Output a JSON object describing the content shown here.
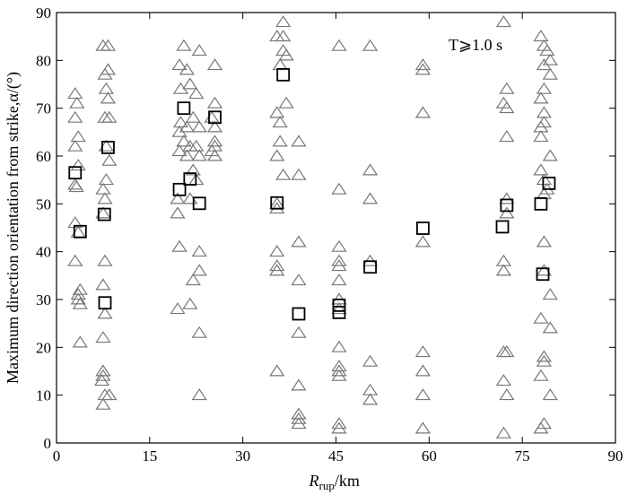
{
  "chart_data": {
    "type": "scatter",
    "xlim": [
      0,
      90
    ],
    "ylim": [
      0,
      90
    ],
    "x_ticks": [
      0,
      15,
      30,
      45,
      60,
      75,
      90
    ],
    "y_ticks": [
      0,
      10,
      20,
      30,
      40,
      50,
      60,
      70,
      80,
      90
    ],
    "xlabel_main": "R",
    "xlabel_sub": "rup",
    "xlabel_unit": "/km",
    "ylabel": "Maximum direction orientation from strike,α/(°)",
    "annotation": "T⩾1.0 s",
    "grid": false,
    "colors": {
      "triangle": "#777777",
      "square": "#000000"
    },
    "series": [
      {
        "marker": "triangle",
        "points": [
          [
            3.0,
            73
          ],
          [
            3.3,
            71
          ],
          [
            3.0,
            68
          ],
          [
            3.5,
            64
          ],
          [
            3.0,
            62
          ],
          [
            3.5,
            58
          ],
          [
            3.0,
            54
          ],
          [
            3.2,
            53.5
          ],
          [
            3.0,
            46
          ],
          [
            3.5,
            44
          ],
          [
            3.0,
            38
          ],
          [
            3.8,
            32
          ],
          [
            3.5,
            31
          ],
          [
            3.5,
            30
          ],
          [
            3.8,
            29
          ],
          [
            3.8,
            21
          ],
          [
            7.5,
            83
          ],
          [
            8.3,
            83
          ],
          [
            7.8,
            77
          ],
          [
            8.3,
            78
          ],
          [
            8.0,
            74
          ],
          [
            8.3,
            72
          ],
          [
            7.8,
            68
          ],
          [
            8.5,
            68
          ],
          [
            8.0,
            62
          ],
          [
            8.5,
            59
          ],
          [
            8.0,
            55
          ],
          [
            7.5,
            53
          ],
          [
            7.8,
            51
          ],
          [
            7.5,
            48
          ],
          [
            7.8,
            38
          ],
          [
            7.5,
            33
          ],
          [
            7.8,
            27
          ],
          [
            7.5,
            22
          ],
          [
            7.5,
            15
          ],
          [
            7.5,
            14
          ],
          [
            7.3,
            13
          ],
          [
            8.5,
            10
          ],
          [
            7.8,
            10
          ],
          [
            7.5,
            8
          ],
          [
            20.5,
            83
          ],
          [
            19.8,
            79
          ],
          [
            21.0,
            78
          ],
          [
            20.0,
            74
          ],
          [
            21.5,
            75
          ],
          [
            22.5,
            73
          ],
          [
            20.0,
            67
          ],
          [
            21.0,
            66
          ],
          [
            22.0,
            68
          ],
          [
            23.0,
            66
          ],
          [
            19.8,
            65
          ],
          [
            20.5,
            63
          ],
          [
            21.5,
            62
          ],
          [
            22.5,
            62
          ],
          [
            23.0,
            60
          ],
          [
            19.8,
            61
          ],
          [
            21.0,
            60
          ],
          [
            22.0,
            57
          ],
          [
            22.5,
            55
          ],
          [
            19.5,
            51
          ],
          [
            21.5,
            51
          ],
          [
            19.5,
            48
          ],
          [
            19.8,
            41
          ],
          [
            23.0,
            40
          ],
          [
            23.0,
            36
          ],
          [
            22.0,
            34
          ],
          [
            21.5,
            29
          ],
          [
            19.5,
            28
          ],
          [
            23.0,
            23
          ],
          [
            23.0,
            10
          ],
          [
            23.0,
            82
          ],
          [
            25.5,
            79
          ],
          [
            25.5,
            71
          ],
          [
            25.0,
            68
          ],
          [
            25.5,
            66
          ],
          [
            25.5,
            63
          ],
          [
            25.5,
            62
          ],
          [
            25.0,
            61
          ],
          [
            25.5,
            60
          ],
          [
            36.5,
            88
          ],
          [
            35.5,
            85
          ],
          [
            36.5,
            85
          ],
          [
            36.5,
            82
          ],
          [
            37.0,
            81
          ],
          [
            36.0,
            79
          ],
          [
            37.0,
            71
          ],
          [
            35.5,
            69
          ],
          [
            36.0,
            67
          ],
          [
            36.0,
            63
          ],
          [
            35.5,
            60
          ],
          [
            36.5,
            56
          ],
          [
            35.5,
            50
          ],
          [
            35.5,
            49
          ],
          [
            35.5,
            40
          ],
          [
            35.5,
            37
          ],
          [
            35.5,
            36
          ],
          [
            35.5,
            15
          ],
          [
            39.0,
            63
          ],
          [
            39.0,
            56
          ],
          [
            39.0,
            42
          ],
          [
            39.0,
            34
          ],
          [
            39.0,
            23
          ],
          [
            39.0,
            12
          ],
          [
            39.0,
            6
          ],
          [
            39.0,
            5
          ],
          [
            39.0,
            4
          ],
          [
            45.5,
            83
          ],
          [
            45.5,
            53
          ],
          [
            45.5,
            41
          ],
          [
            45.5,
            38
          ],
          [
            45.5,
            37
          ],
          [
            45.5,
            34
          ],
          [
            45.5,
            30
          ],
          [
            45.5,
            28
          ],
          [
            45.5,
            20
          ],
          [
            45.5,
            16
          ],
          [
            45.5,
            15
          ],
          [
            45.5,
            14
          ],
          [
            45.5,
            4
          ],
          [
            45.5,
            3
          ],
          [
            50.5,
            83
          ],
          [
            50.5,
            57
          ],
          [
            50.5,
            51
          ],
          [
            50.5,
            38
          ],
          [
            50.5,
            17
          ],
          [
            50.5,
            11
          ],
          [
            50.5,
            9
          ],
          [
            59.0,
            79
          ],
          [
            59.0,
            78
          ],
          [
            59.0,
            69
          ],
          [
            59.0,
            42
          ],
          [
            59.0,
            19
          ],
          [
            59.0,
            15
          ],
          [
            59.0,
            10
          ],
          [
            59.0,
            3
          ],
          [
            72.0,
            88
          ],
          [
            72.0,
            71
          ],
          [
            72.5,
            74
          ],
          [
            72.5,
            70
          ],
          [
            72.5,
            64
          ],
          [
            72.0,
            38
          ],
          [
            72.0,
            36
          ],
          [
            72.0,
            19
          ],
          [
            72.5,
            19
          ],
          [
            72.0,
            13
          ],
          [
            72.5,
            10
          ],
          [
            72.0,
            2
          ],
          [
            72.5,
            51
          ],
          [
            72.5,
            48
          ],
          [
            78.0,
            85
          ],
          [
            78.5,
            83
          ],
          [
            79.0,
            82
          ],
          [
            79.5,
            80
          ],
          [
            78.5,
            79
          ],
          [
            79.5,
            77
          ],
          [
            78.5,
            74
          ],
          [
            78.0,
            72
          ],
          [
            78.5,
            69
          ],
          [
            78.5,
            67
          ],
          [
            78.0,
            66
          ],
          [
            78.0,
            64
          ],
          [
            79.5,
            60
          ],
          [
            78.0,
            57
          ],
          [
            78.5,
            55
          ],
          [
            79.0,
            53
          ],
          [
            78.5,
            52
          ],
          [
            78.5,
            42
          ],
          [
            78.5,
            36
          ],
          [
            79.5,
            31
          ],
          [
            78.0,
            26
          ],
          [
            79.5,
            24
          ],
          [
            78.5,
            18
          ],
          [
            78.5,
            17
          ],
          [
            78.0,
            14
          ],
          [
            79.5,
            10
          ],
          [
            78.5,
            4
          ],
          [
            78.0,
            3
          ]
        ]
      },
      {
        "marker": "square",
        "points": [
          [
            3.0,
            56.5
          ],
          [
            3.8,
            44.2
          ],
          [
            7.7,
            47.8
          ],
          [
            8.3,
            61.8
          ],
          [
            7.8,
            29.3
          ],
          [
            19.8,
            53
          ],
          [
            20.5,
            70
          ],
          [
            21.5,
            55.2
          ],
          [
            23.0,
            50.1
          ],
          [
            25.5,
            68.1
          ],
          [
            35.5,
            50.2
          ],
          [
            36.5,
            77
          ],
          [
            39.0,
            27
          ],
          [
            45.5,
            28.8
          ],
          [
            45.5,
            27.3
          ],
          [
            50.5,
            36.8
          ],
          [
            59.0,
            44.9
          ],
          [
            71.8,
            45.2
          ],
          [
            72.5,
            49.7
          ],
          [
            78.0,
            50
          ],
          [
            78.3,
            35.3
          ],
          [
            79.3,
            54.3
          ]
        ]
      }
    ]
  }
}
